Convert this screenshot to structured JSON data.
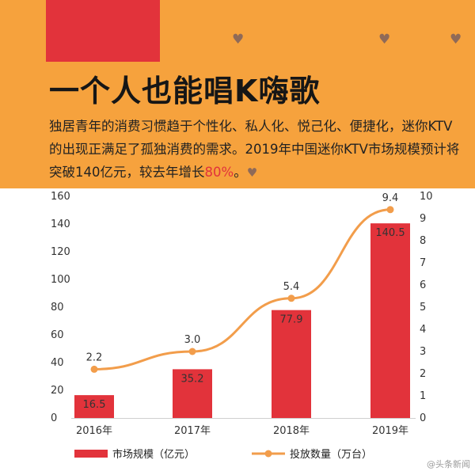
{
  "header": {
    "title": "一个人也能唱K嗨歌",
    "desc_main": "独居青年的消费习惯趋于个性化、私人化、悦己化、便捷化，迷你KTV的出现正满足了孤独消费的需求。2019年中国迷你KTV市场规模预计将突破140亿元，较去年增长",
    "desc_highlight": "80%",
    "desc_end": "。",
    "colors": {
      "background": "#f6a23d",
      "red_block": "#e2333b",
      "heart": "#8f6a58",
      "highlight": "#e2333b"
    },
    "icons": [
      "heart-icon",
      "heart-icon",
      "heart-icon",
      "heart-icon"
    ]
  },
  "chart_data": {
    "type": "bar",
    "categories": [
      "2016年",
      "2017年",
      "2018年",
      "2019年"
    ],
    "series": [
      {
        "name": "市场规模（亿元）",
        "type": "bar",
        "axis": "left",
        "color": "#e2333b",
        "values": [
          16.5,
          35.2,
          77.9,
          140.5
        ]
      },
      {
        "name": "投放数量（万台）",
        "type": "line",
        "axis": "right",
        "color": "#f29d4b",
        "values": [
          2.2,
          3.0,
          5.4,
          9.4
        ]
      }
    ],
    "y_left": {
      "ylim": [
        0,
        160
      ],
      "ticks": [
        "0",
        "20",
        "40",
        "60",
        "80",
        "100",
        "120",
        "140",
        "160"
      ]
    },
    "y_right": {
      "ylim": [
        0,
        10
      ],
      "ticks": [
        "0",
        "1",
        "2",
        "3",
        "4",
        "5",
        "6",
        "7",
        "8",
        "9",
        "10"
      ]
    },
    "legend_position": "bottom",
    "grid": false
  },
  "watermark": "@头条新闻"
}
